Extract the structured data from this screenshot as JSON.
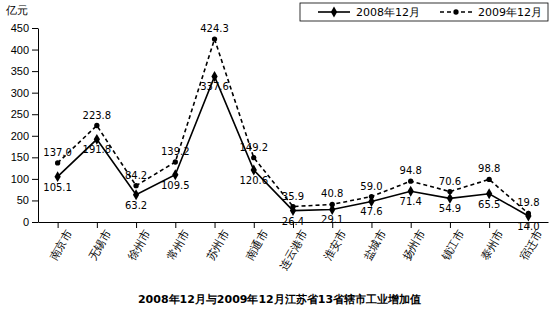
{
  "chart_data": {
    "type": "line",
    "title": "2008年12月与2009年12月江苏省13省辖市工业增加值",
    "y_label": "亿元",
    "categories": [
      "南京市",
      "无锡市",
      "徐州市",
      "常州市",
      "苏州市",
      "南通市",
      "连云港市",
      "淮安市",
      "盐城市",
      "扬州市",
      "镇江市",
      "泰州市",
      "宿迁市"
    ],
    "series": [
      {
        "name": "2008年12月",
        "color": "#000000",
        "marker": "diamond",
        "line_style": "solid",
        "values": [
          105.1,
          191.8,
          63.2,
          109.5,
          337.6,
          120.6,
          26.4,
          29.1,
          47.6,
          71.4,
          54.9,
          65.5,
          14.0
        ],
        "value_labels": [
          "105.1",
          "191.8",
          "63.2",
          "109.5",
          "337.6",
          "120.6",
          "26.4",
          "29.1",
          "47.6",
          "71.4",
          "54.9",
          "65.5",
          "14.0"
        ]
      },
      {
        "name": "2009年12月",
        "color": "#000000",
        "marker": "circle",
        "line_style": "dashed",
        "values": [
          137.0,
          223.8,
          84.2,
          139.2,
          424.3,
          149.2,
          35.9,
          40.8,
          59.0,
          94.8,
          70.6,
          98.8,
          19.8
        ],
        "value_labels": [
          "137.0",
          "223.8",
          "84.2",
          "139.2",
          "424.3",
          "149.2",
          "35.9",
          "40.8",
          "59.0",
          "94.8",
          "70.6",
          "98.8",
          "19.8"
        ]
      }
    ],
    "ylim": [
      0,
      450
    ],
    "yticks": [
      0,
      50,
      100,
      150,
      200,
      250,
      300,
      350,
      400,
      450
    ],
    "grid": false,
    "legend": "top-right",
    "data_labels": true
  }
}
